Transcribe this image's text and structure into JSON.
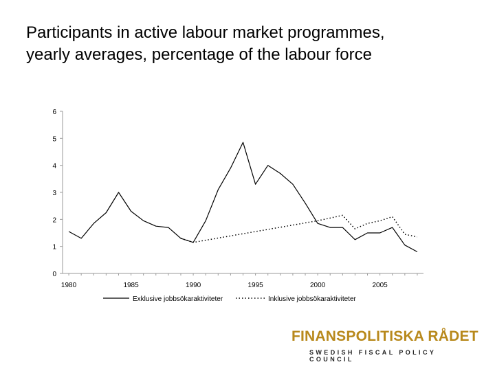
{
  "title": {
    "line1": "Participants in active labour market programmes,",
    "line2": "yearly averages, percentage of the labour force"
  },
  "logo": {
    "main": "FINANSPOLITISKA RÅDET",
    "sub": "SWEDISH FISCAL POLICY COUNCIL",
    "color": "#b8891c"
  },
  "chart_data": {
    "type": "line",
    "x_ticks": [
      1980,
      1985,
      1990,
      1995,
      2000,
      2005
    ],
    "y_ticks": [
      0,
      1,
      2,
      3,
      4,
      5,
      6
    ],
    "xlim": [
      1979.5,
      2008.5
    ],
    "ylim": [
      0,
      6
    ],
    "grid": false,
    "legend_position": "bottom",
    "series": [
      {
        "name": "Exklusive jobbsökaraktiviteter",
        "style": "solid",
        "x": [
          1980,
          1981,
          1982,
          1983,
          1984,
          1985,
          1986,
          1987,
          1988,
          1989,
          1990,
          1991,
          1992,
          1993,
          1994,
          1995,
          1996,
          1997,
          1998,
          1999,
          2000,
          2001,
          2002,
          2003,
          2004,
          2005,
          2006,
          2007,
          2008
        ],
        "values": [
          1.55,
          1.3,
          1.85,
          2.25,
          3.0,
          2.3,
          1.95,
          1.75,
          1.7,
          1.3,
          1.15,
          1.95,
          3.1,
          3.9,
          4.85,
          3.3,
          4.0,
          3.7,
          3.3,
          2.6,
          1.85,
          1.7,
          1.7,
          1.25,
          1.5,
          1.5,
          1.7,
          1.05,
          0.8
        ]
      },
      {
        "name": "Inklusive jobbsökaraktiviteter",
        "style": "dotted",
        "x": [
          1989,
          1990,
          2000,
          2001,
          2002,
          2003,
          2004,
          2005,
          2006,
          2007,
          2008
        ],
        "values": [
          1.3,
          1.15,
          1.95,
          2.05,
          2.15,
          1.65,
          1.85,
          1.95,
          2.1,
          1.45,
          1.35
        ]
      }
    ]
  }
}
